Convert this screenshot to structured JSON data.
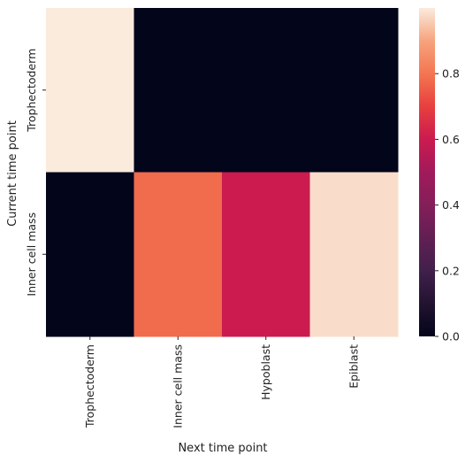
{
  "chart_data": {
    "type": "heatmap",
    "title": "",
    "xlabel": "Next time point",
    "ylabel": "Current time point",
    "x_categories": [
      "Trophectoderm",
      "Inner cell mass",
      "Hypoblast",
      "Epiblast"
    ],
    "y_categories": [
      "Trophectoderm",
      "Inner cell mass"
    ],
    "values": [
      [
        1.0,
        0.0,
        0.0,
        0.0
      ],
      [
        0.0,
        0.78,
        0.6,
        0.98
      ]
    ],
    "colorbar": {
      "vmin": 0.0,
      "vmax": 1.0,
      "ticks": [
        0.0,
        0.2,
        0.4,
        0.6,
        0.8
      ],
      "tick_labels": [
        "0.0",
        "0.2",
        "0.4",
        "0.6",
        "0.8"
      ],
      "colormap": "rocket"
    }
  }
}
